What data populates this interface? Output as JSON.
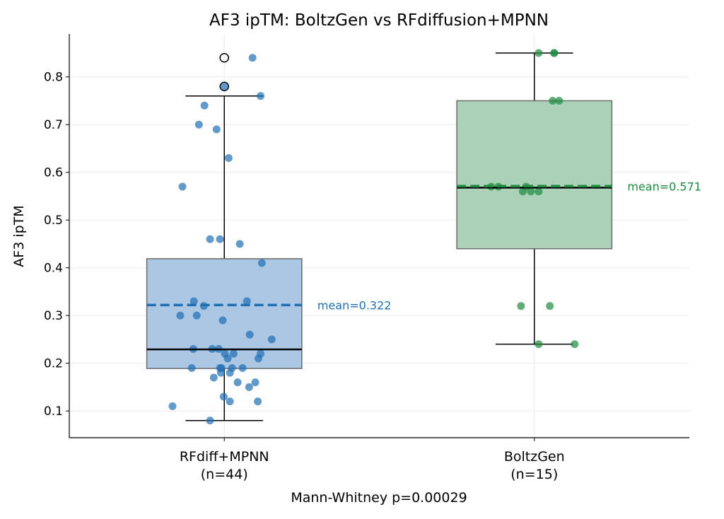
{
  "chart_data": {
    "type": "box",
    "title": "AF3 ipTM: BoltzGen vs RFdiffusion+MPNN",
    "xlabel": "Mann-Whitney p=0.00029",
    "ylabel": "AF3 ipTM",
    "ylim": [
      0.044,
      0.89
    ],
    "xlim": [
      -0.5,
      1.5
    ],
    "yticks": [
      0.1,
      0.2,
      0.3,
      0.4,
      0.5,
      0.6,
      0.7,
      0.8
    ],
    "grid": true,
    "groups": [
      {
        "label_line1": "RFdiff+MPNN",
        "label_line2": "(n=44)",
        "color": "#1f6fb5",
        "box_color": "#a6c4e2",
        "q1": 0.189,
        "median": 0.229,
        "q3": 0.419,
        "whisker_low": 0.08,
        "whisker_high": 0.76,
        "fliers": [
          0.84,
          0.78
        ],
        "mean": 0.322,
        "mean_label": "mean=0.322",
        "points": [
          [
            0.091,
            0.84
          ],
          [
            0.117,
            0.76
          ],
          [
            -0.064,
            0.74
          ],
          [
            -0.082,
            0.7
          ],
          [
            -0.025,
            0.69
          ],
          [
            0.014,
            0.63
          ],
          [
            -0.135,
            0.57
          ],
          [
            -0.046,
            0.46
          ],
          [
            -0.014,
            0.46
          ],
          [
            0.05,
            0.45
          ],
          [
            0.121,
            0.41
          ],
          [
            -0.098,
            0.33
          ],
          [
            0.073,
            0.33
          ],
          [
            -0.066,
            0.32
          ],
          [
            -0.142,
            0.3
          ],
          [
            -0.089,
            0.3
          ],
          [
            -0.005,
            0.29
          ],
          [
            0.082,
            0.26
          ],
          [
            0.153,
            0.25
          ],
          [
            -0.1,
            0.23
          ],
          [
            -0.039,
            0.23
          ],
          [
            -0.018,
            0.23
          ],
          [
            0.002,
            0.22
          ],
          [
            0.03,
            0.22
          ],
          [
            0.117,
            0.22
          ],
          [
            0.011,
            0.21
          ],
          [
            0.11,
            0.21
          ],
          [
            -0.105,
            0.19
          ],
          [
            -0.014,
            0.19
          ],
          [
            -0.009,
            0.19
          ],
          [
            0.025,
            0.19
          ],
          [
            0.059,
            0.19
          ],
          [
            -0.011,
            0.18
          ],
          [
            0.018,
            0.18
          ],
          [
            -0.034,
            0.17
          ],
          [
            0.043,
            0.16
          ],
          [
            0.1,
            0.16
          ],
          [
            0.08,
            0.15
          ],
          [
            -0.002,
            0.13
          ],
          [
            0.018,
            0.12
          ],
          [
            0.108,
            0.12
          ],
          [
            -0.167,
            0.11
          ],
          [
            -0.046,
            0.08
          ],
          [
            0.0,
            0.78
          ]
        ]
      },
      {
        "label_line1": "BoltzGen",
        "label_line2": "(n=15)",
        "color": "#1e8a3e",
        "box_color": "#a7d0b5",
        "q1": 0.44,
        "median": 0.568,
        "q3": 0.75,
        "whisker_low": 0.24,
        "whisker_high": 0.85,
        "fliers": [],
        "mean": 0.571,
        "mean_label": "mean=0.571",
        "points": [
          [
            0.014,
            0.85
          ],
          [
            0.064,
            0.85
          ],
          [
            0.064,
            0.85
          ],
          [
            0.059,
            0.75
          ],
          [
            0.08,
            0.75
          ],
          [
            -0.139,
            0.57
          ],
          [
            -0.116,
            0.57
          ],
          [
            -0.027,
            0.57
          ],
          [
            -0.037,
            0.56
          ],
          [
            -0.011,
            0.56
          ],
          [
            0.014,
            0.56
          ],
          [
            -0.043,
            0.32
          ],
          [
            0.05,
            0.32
          ],
          [
            0.014,
            0.24
          ],
          [
            0.13,
            0.24
          ]
        ]
      }
    ]
  }
}
